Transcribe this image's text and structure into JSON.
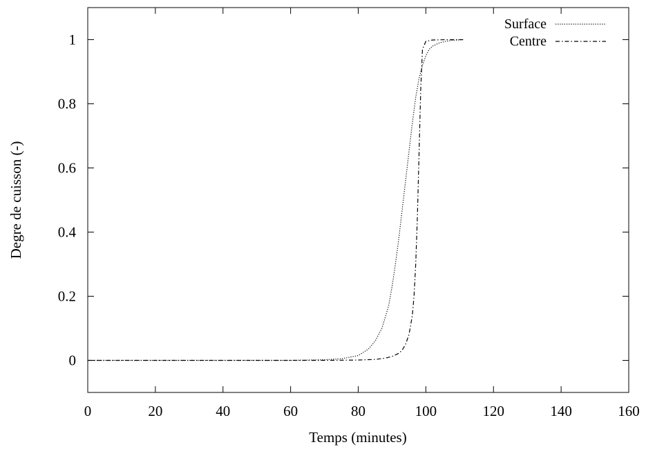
{
  "chart_data": {
    "type": "line",
    "title": "",
    "xlabel": "Temps (minutes)",
    "ylabel": "Degre de cuisson (-)",
    "xlim": [
      0,
      160
    ],
    "ylim": [
      -0.1,
      1.1
    ],
    "xticks": [
      0,
      20,
      40,
      60,
      80,
      100,
      120,
      140,
      160
    ],
    "yticks": [
      0,
      0.2,
      0.4,
      0.6,
      0.8,
      1
    ],
    "ytick_labels": [
      "0",
      "0.2",
      "0.4",
      "0.6",
      "0.8",
      "1"
    ],
    "grid": false,
    "legend_position": "top-right",
    "series": [
      {
        "name": "Surface",
        "style": "dotted",
        "color": "#000000",
        "x": [
          0,
          60,
          70,
          75,
          80,
          83,
          85,
          87,
          89,
          90,
          91,
          92,
          93,
          94,
          95,
          96,
          97,
          98,
          99,
          100,
          101,
          102,
          104,
          106,
          108,
          111
        ],
        "y": [
          0,
          0,
          0.002,
          0.005,
          0.015,
          0.035,
          0.06,
          0.1,
          0.17,
          0.23,
          0.3,
          0.38,
          0.47,
          0.56,
          0.65,
          0.74,
          0.82,
          0.88,
          0.92,
          0.95,
          0.97,
          0.98,
          0.99,
          0.995,
          0.998,
          1.0
        ]
      },
      {
        "name": "Centre",
        "style": "dash-dot",
        "color": "#000000",
        "x": [
          0,
          70,
          80,
          85,
          88,
          90,
          92,
          93,
          94,
          95,
          96,
          96.5,
          97,
          97.5,
          98,
          98.5,
          99,
          100,
          102,
          106,
          111
        ],
        "y": [
          0,
          0,
          0.001,
          0.003,
          0.007,
          0.012,
          0.022,
          0.032,
          0.05,
          0.08,
          0.14,
          0.2,
          0.3,
          0.45,
          0.65,
          0.85,
          0.97,
          0.995,
          0.999,
          1.0,
          1.0
        ]
      }
    ]
  }
}
